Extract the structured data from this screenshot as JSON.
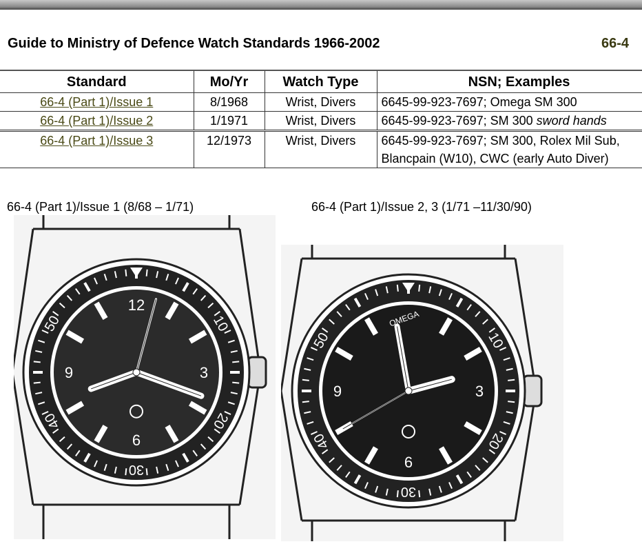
{
  "header": {
    "title": "Guide to Ministry of Defence Watch Standards 1966-2002",
    "code": "66-4"
  },
  "table": {
    "columns": [
      "Standard",
      "Mo/Yr",
      "Watch Type",
      "NSN; Examples"
    ],
    "rows": [
      {
        "standard": "66-4 (Part 1)/Issue 1",
        "moyr": "8/1968",
        "type": "Wrist, Divers",
        "nsn": "6645-99-923-7697; Omega SM 300",
        "nsn_italic": ""
      },
      {
        "standard": "66-4 (Part 1)/Issue 2",
        "moyr": "1/1971",
        "type": "Wrist, Divers",
        "nsn": "6645-99-923-7697; SM 300 ",
        "nsn_italic": "sword hands"
      },
      {
        "standard": "66-4 (Part 1)/Issue 3",
        "moyr": "12/1973",
        "type": "Wrist, Divers",
        "nsn": "6645-99-923-7697; SM 300, Rolex Mil Sub,",
        "nsn_line2": "Blancpain (W10), CWC (early Auto Diver)"
      }
    ]
  },
  "figures": [
    {
      "caption": "66-4 (Part 1)/Issue 1 (8/68 – 1/71)",
      "bezel_numbers": [
        "10",
        "20",
        "30",
        "40",
        "50"
      ],
      "dial_numbers": [
        "12",
        "3",
        "6",
        "9"
      ]
    },
    {
      "caption": "66-4 (Part 1)/Issue 2, 3 (1/71 –11/30/90)",
      "bezel_numbers": [
        "10",
        "20",
        "30",
        "40",
        "50"
      ],
      "dial_numbers": [
        "3",
        "6",
        "9"
      ],
      "dial_text": "OMEGA"
    }
  ]
}
